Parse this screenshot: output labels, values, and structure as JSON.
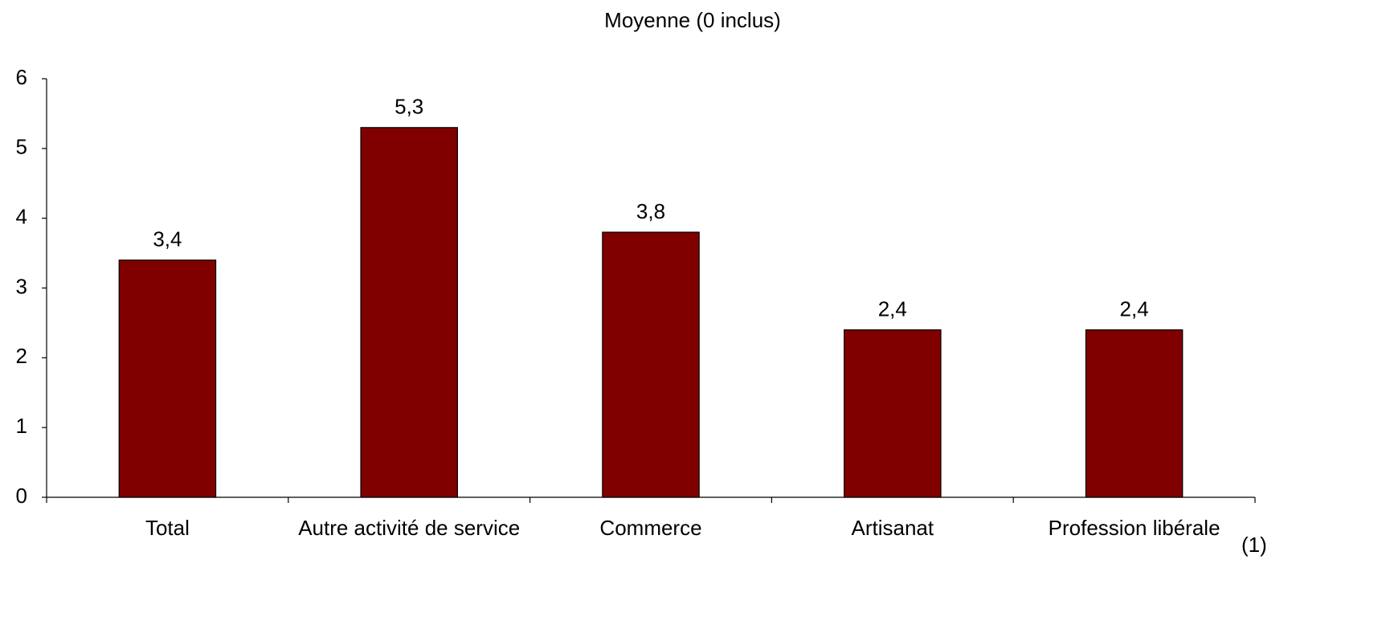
{
  "chart_data": {
    "type": "bar",
    "title": "Moyenne (0 inclus)",
    "categories": [
      "Total",
      "Autre activité de service",
      "Commerce",
      "Artisanat",
      "Profession libérale"
    ],
    "values": [
      3.4,
      5.3,
      3.8,
      2.4,
      2.4
    ],
    "value_labels": [
      "3,4",
      "5,3",
      "3,8",
      "2,4",
      "2,4"
    ],
    "color": "#800000",
    "ylim": [
      0,
      6
    ],
    "yticks": [
      0,
      1,
      2,
      3,
      4,
      5,
      6
    ],
    "grid": false,
    "annotation": "(1)"
  }
}
